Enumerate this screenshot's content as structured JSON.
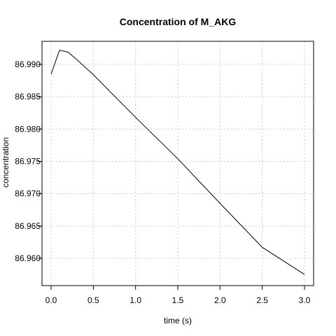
{
  "chart_data": {
    "type": "line",
    "title": "Concentration of M_AKG",
    "xlabel": "time (s)",
    "ylabel": "concentration",
    "xlim": [
      0.0,
      3.0
    ],
    "ylim": [
      86.9575,
      86.9922
    ],
    "x_ticks": [
      "0.0",
      "0.5",
      "1.0",
      "1.5",
      "2.0",
      "2.5",
      "3.0"
    ],
    "y_ticks": [
      "86.960",
      "86.965",
      "86.970",
      "86.975",
      "86.980",
      "86.985",
      "86.990"
    ],
    "grid": true,
    "series": [
      {
        "x": [
          0.0,
          0.1,
          0.2,
          0.3,
          0.5,
          1.0,
          1.5,
          2.0,
          2.5,
          3.0
        ],
        "values": [
          86.9885,
          86.9922,
          86.9919,
          86.9908,
          86.9884,
          86.9818,
          86.9754,
          86.9685,
          86.9617,
          86.9575
        ]
      }
    ]
  }
}
